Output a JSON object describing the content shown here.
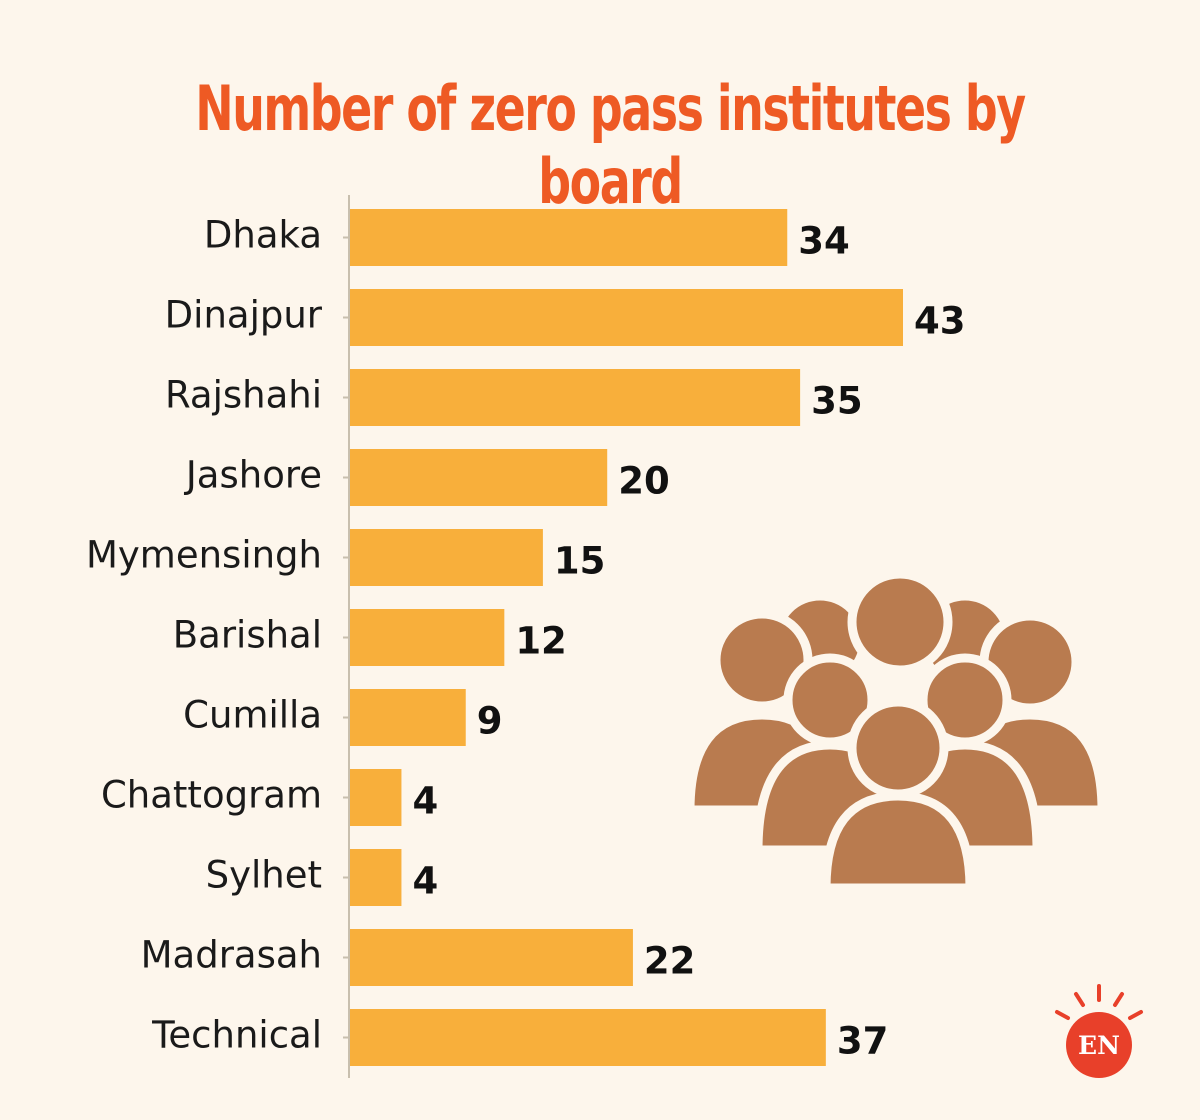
{
  "chart_data": {
    "type": "bar",
    "orientation": "horizontal",
    "title": "Number of zero pass institutes by board",
    "categories": [
      "Dhaka",
      "Dinajpur",
      "Rajshahi",
      "Jashore",
      "Mymensingh",
      "Barishal",
      "Cumilla",
      "Chattogram",
      "Sylhet",
      "Madrasah",
      "Technical"
    ],
    "values": [
      34,
      43,
      35,
      20,
      15,
      12,
      9,
      4,
      4,
      22,
      37
    ],
    "xlim": [
      0,
      43
    ],
    "data_labels": true,
    "grid": false,
    "legend": "none"
  },
  "logo": {
    "text": "EN"
  },
  "colors": {
    "background": "#fdf6ec",
    "bar": "#f8af3b",
    "title": "#ee5a24",
    "axis": "#c8bfae",
    "people_icon": "#b97b4f",
    "logo": "#e8402a"
  },
  "icons": [
    "people-group-icon",
    "sun-logo-icon"
  ]
}
